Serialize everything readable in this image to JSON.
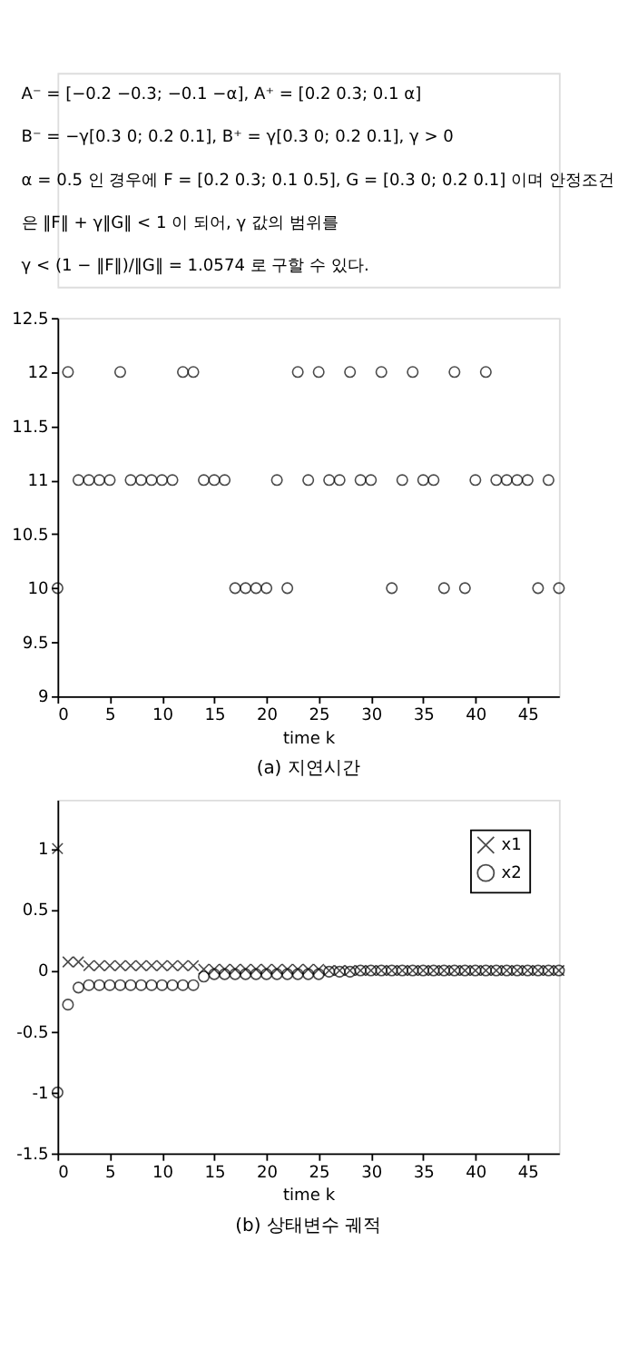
{
  "chart_data": [
    {
      "type": "scatter",
      "title": "(a)  지연시간",
      "xlabel": "time k",
      "annotations": [
        "A⁻ = [−0.2  −0.3; −0.1  −α],   A⁺ = [0.2  0.3; 0.1  α]",
        "B⁻ = −γ[0.3  0; 0.2  0.1],   B⁺ = γ[0.3  0; 0.2  0.1],  γ > 0",
        "α = 0.5 인 경우에 F = [0.2 0.3; 0.1 0.5], G = [0.3 0; 0.2 0.1] 이며 안정조건",
        "은   ‖F‖ + γ‖G‖ < 1   이 되어,   γ 값의 범위를",
        "γ < (1 − ‖F‖)/‖G‖ = 1.0574 로 구할 수 있다."
      ],
      "x": [
        0,
        1,
        2,
        3,
        4,
        5,
        6,
        7,
        8,
        9,
        10,
        11,
        12,
        13,
        14,
        15,
        16,
        17,
        18,
        19,
        20,
        21,
        22,
        23,
        24,
        25,
        26,
        27,
        28,
        29,
        30,
        31,
        32,
        33,
        34,
        35,
        36,
        37,
        38,
        39,
        40,
        41,
        42,
        43,
        44,
        45,
        46,
        47,
        48
      ],
      "series": [
        {
          "color": "#000000",
          "marker": "circle",
          "values": [
            10,
            12,
            11,
            11,
            11,
            11,
            12,
            11,
            11,
            11,
            11,
            11,
            12,
            12,
            11,
            11,
            11,
            10,
            10,
            10,
            10,
            11,
            10,
            12,
            11,
            12,
            11,
            11,
            12,
            11,
            11,
            12,
            10,
            11,
            12,
            11,
            11,
            10,
            12,
            10,
            11,
            12,
            11,
            11,
            11,
            11,
            10,
            11,
            10
          ]
        }
      ],
      "xlim": [
        0,
        48
      ],
      "xticks": [
        0,
        5,
        10,
        15,
        20,
        25,
        30,
        35,
        40,
        45
      ],
      "ylim": [
        9,
        12.5
      ],
      "yticks": [
        9,
        9.5,
        10,
        10.5,
        11,
        11.5,
        12,
        12.5
      ],
      "grid": false,
      "legend": false
    },
    {
      "type": "scatter",
      "title": "(b)  상태변수 궤적",
      "xlabel": "time k",
      "x": [
        0,
        1,
        2,
        3,
        4,
        5,
        6,
        7,
        8,
        9,
        10,
        11,
        12,
        13,
        14,
        15,
        16,
        17,
        18,
        19,
        20,
        21,
        22,
        23,
        24,
        25,
        26,
        27,
        28,
        29,
        30,
        31,
        32,
        33,
        34,
        35,
        36,
        37,
        38,
        39,
        40,
        41,
        42,
        43,
        44,
        45,
        46,
        47,
        48
      ],
      "series": [
        {
          "name": "x1",
          "color": "#000000",
          "marker": "cross",
          "values": [
            1,
            0.07,
            0.07,
            0.04,
            0.04,
            0.04,
            0.04,
            0.04,
            0.04,
            0.04,
            0.04,
            0.04,
            0.04,
            0.04,
            0.01,
            0.01,
            0.01,
            0.01,
            0.01,
            0.01,
            0.01,
            0.01,
            0.01,
            0.01,
            0.01,
            0.01,
            0,
            0,
            0,
            0,
            0,
            0,
            0,
            0,
            0,
            0,
            0,
            0,
            0,
            0,
            0,
            0,
            0,
            0,
            0,
            0,
            0,
            0,
            0
          ]
        },
        {
          "name": "x2",
          "color": "#000000",
          "marker": "circle",
          "values": [
            -1,
            -0.28,
            -0.14,
            -0.12,
            -0.12,
            -0.12,
            -0.12,
            -0.12,
            -0.12,
            -0.12,
            -0.12,
            -0.12,
            -0.12,
            -0.12,
            -0.05,
            -0.03,
            -0.03,
            -0.03,
            -0.03,
            -0.03,
            -0.03,
            -0.03,
            -0.03,
            -0.03,
            -0.03,
            -0.03,
            -0.01,
            -0.01,
            -0.01,
            0,
            0,
            0,
            0,
            0,
            0,
            0,
            0,
            0,
            0,
            0,
            0,
            0,
            0,
            0,
            0,
            0,
            0,
            0,
            0
          ]
        }
      ],
      "xlim": [
        0,
        48
      ],
      "xticks": [
        0,
        5,
        10,
        15,
        20,
        25,
        30,
        35,
        40,
        45
      ],
      "ylim": [
        -1.5,
        1.4
      ],
      "yticks": [
        -1.5,
        -1,
        -0.5,
        0,
        0.5,
        1
      ],
      "grid": false,
      "legend": "top right"
    }
  ]
}
